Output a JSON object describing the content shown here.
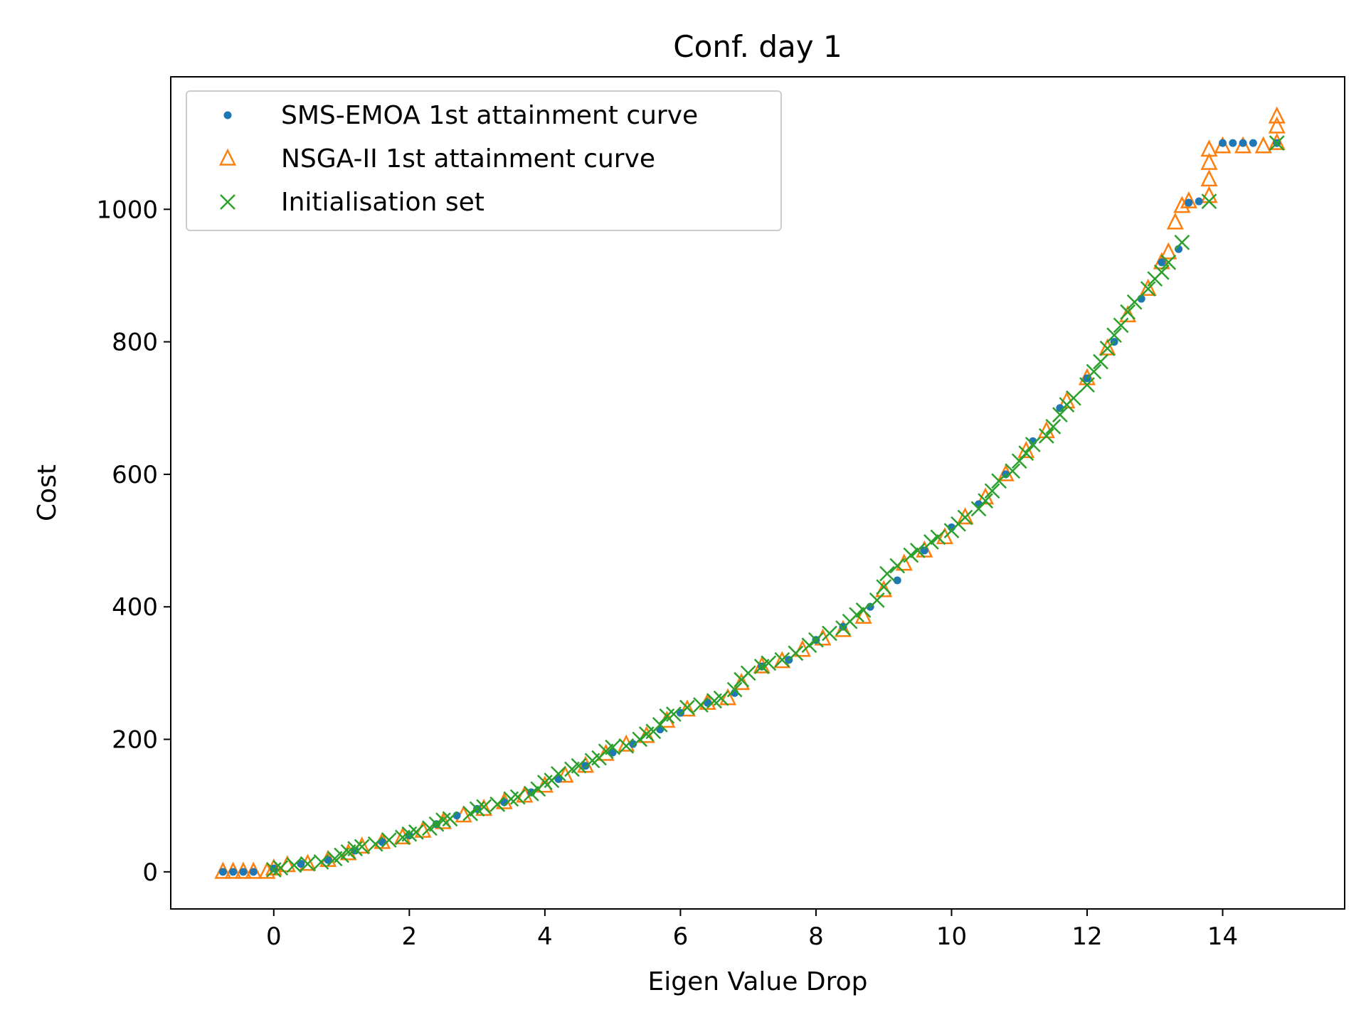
{
  "chart_data": {
    "type": "scatter",
    "title": "Conf. day 1",
    "xlabel": "Eigen Value Drop",
    "ylabel": "Cost",
    "xlim": [
      -1.52,
      15.8
    ],
    "ylim": [
      -56,
      1200
    ],
    "xticks": [
      0,
      2,
      4,
      6,
      8,
      10,
      12,
      14
    ],
    "xtick_labels": [
      "0",
      "2",
      "4",
      "6",
      "8",
      "10",
      "12",
      "14"
    ],
    "yticks": [
      0,
      200,
      400,
      600,
      800,
      1000
    ],
    "ytick_labels": [
      "0",
      "200",
      "400",
      "600",
      "800",
      "1000"
    ],
    "grid": false,
    "legend_position": "top-left",
    "series": [
      {
        "name": "SMS-EMOA 1st attainment curve",
        "marker": "dot",
        "color": "#1f77b4",
        "points": [
          [
            -0.75,
            0
          ],
          [
            -0.6,
            0
          ],
          [
            -0.45,
            0
          ],
          [
            -0.3,
            0
          ],
          [
            0.0,
            5
          ],
          [
            0.4,
            12
          ],
          [
            0.8,
            18
          ],
          [
            1.2,
            32
          ],
          [
            1.6,
            45
          ],
          [
            2.0,
            55
          ],
          [
            2.4,
            72
          ],
          [
            2.7,
            85
          ],
          [
            3.0,
            95
          ],
          [
            3.4,
            105
          ],
          [
            3.8,
            120
          ],
          [
            4.2,
            140
          ],
          [
            4.6,
            160
          ],
          [
            5.0,
            180
          ],
          [
            5.3,
            193
          ],
          [
            5.7,
            215
          ],
          [
            6.0,
            240
          ],
          [
            6.4,
            255
          ],
          [
            6.8,
            270
          ],
          [
            7.2,
            310
          ],
          [
            7.6,
            320
          ],
          [
            8.0,
            350
          ],
          [
            8.4,
            370
          ],
          [
            8.8,
            400
          ],
          [
            9.2,
            440
          ],
          [
            9.6,
            485
          ],
          [
            10.0,
            520
          ],
          [
            10.4,
            555
          ],
          [
            10.8,
            600
          ],
          [
            11.2,
            650
          ],
          [
            11.6,
            700
          ],
          [
            12.0,
            745
          ],
          [
            12.4,
            800
          ],
          [
            12.8,
            865
          ],
          [
            13.1,
            920
          ],
          [
            13.35,
            940
          ],
          [
            13.5,
            1010
          ],
          [
            13.65,
            1012
          ],
          [
            14.0,
            1100
          ],
          [
            14.15,
            1100
          ],
          [
            14.3,
            1100
          ],
          [
            14.45,
            1100
          ],
          [
            14.8,
            1100
          ]
        ]
      },
      {
        "name": "NSGA-II 1st attainment curve",
        "marker": "triangle",
        "color": "#ff7f0e",
        "points": [
          [
            -0.75,
            0
          ],
          [
            -0.6,
            0
          ],
          [
            -0.45,
            0
          ],
          [
            -0.3,
            0
          ],
          [
            -0.1,
            0
          ],
          [
            0.0,
            5
          ],
          [
            0.2,
            10
          ],
          [
            0.5,
            12
          ],
          [
            0.8,
            18
          ],
          [
            1.1,
            28
          ],
          [
            1.3,
            38
          ],
          [
            1.6,
            45
          ],
          [
            1.9,
            52
          ],
          [
            2.2,
            62
          ],
          [
            2.5,
            75
          ],
          [
            2.8,
            85
          ],
          [
            3.1,
            95
          ],
          [
            3.4,
            105
          ],
          [
            3.7,
            115
          ],
          [
            4.0,
            130
          ],
          [
            4.3,
            145
          ],
          [
            4.6,
            160
          ],
          [
            4.9,
            178
          ],
          [
            5.2,
            192
          ],
          [
            5.5,
            205
          ],
          [
            5.8,
            228
          ],
          [
            6.1,
            245
          ],
          [
            6.4,
            255
          ],
          [
            6.7,
            262
          ],
          [
            6.9,
            285
          ],
          [
            7.2,
            310
          ],
          [
            7.5,
            318
          ],
          [
            7.8,
            335
          ],
          [
            8.1,
            352
          ],
          [
            8.4,
            365
          ],
          [
            8.7,
            385
          ],
          [
            9.0,
            425
          ],
          [
            9.3,
            465
          ],
          [
            9.6,
            485
          ],
          [
            9.9,
            505
          ],
          [
            10.2,
            535
          ],
          [
            10.5,
            565
          ],
          [
            10.8,
            600
          ],
          [
            11.1,
            635
          ],
          [
            11.4,
            665
          ],
          [
            11.7,
            710
          ],
          [
            12.0,
            745
          ],
          [
            12.3,
            790
          ],
          [
            12.6,
            840
          ],
          [
            12.9,
            880
          ],
          [
            13.1,
            920
          ],
          [
            13.2,
            935
          ],
          [
            13.3,
            980
          ],
          [
            13.4,
            1005
          ],
          [
            13.5,
            1012
          ],
          [
            13.8,
            1020
          ],
          [
            13.8,
            1045
          ],
          [
            13.8,
            1070
          ],
          [
            13.8,
            1090
          ],
          [
            14.0,
            1095
          ],
          [
            14.3,
            1095
          ],
          [
            14.6,
            1095
          ],
          [
            14.8,
            1100
          ],
          [
            14.8,
            1125
          ],
          [
            14.8,
            1140
          ]
        ]
      },
      {
        "name": "Initialisation set",
        "marker": "x",
        "color": "#2ca02c",
        "points": [
          [
            0.0,
            3
          ],
          [
            0.1,
            6
          ],
          [
            0.3,
            10
          ],
          [
            0.5,
            12
          ],
          [
            0.7,
            15
          ],
          [
            0.9,
            20
          ],
          [
            1.0,
            25
          ],
          [
            1.1,
            30
          ],
          [
            1.2,
            35
          ],
          [
            1.3,
            38
          ],
          [
            1.5,
            42
          ],
          [
            1.7,
            48
          ],
          [
            1.9,
            52
          ],
          [
            2.0,
            57
          ],
          [
            2.1,
            60
          ],
          [
            2.3,
            66
          ],
          [
            2.4,
            72
          ],
          [
            2.5,
            78
          ],
          [
            2.6,
            80
          ],
          [
            2.9,
            88
          ],
          [
            3.0,
            95
          ],
          [
            3.1,
            98
          ],
          [
            3.3,
            102
          ],
          [
            3.5,
            110
          ],
          [
            3.6,
            113
          ],
          [
            3.8,
            118
          ],
          [
            3.9,
            125
          ],
          [
            4.0,
            135
          ],
          [
            4.1,
            138
          ],
          [
            4.2,
            148
          ],
          [
            4.4,
            155
          ],
          [
            4.5,
            160
          ],
          [
            4.7,
            168
          ],
          [
            4.8,
            172
          ],
          [
            4.9,
            182
          ],
          [
            5.0,
            188
          ],
          [
            5.2,
            190
          ],
          [
            5.4,
            200
          ],
          [
            5.5,
            208
          ],
          [
            5.6,
            212
          ],
          [
            5.7,
            222
          ],
          [
            5.8,
            235
          ],
          [
            5.9,
            238
          ],
          [
            6.1,
            248
          ],
          [
            6.3,
            252
          ],
          [
            6.5,
            258
          ],
          [
            6.6,
            262
          ],
          [
            6.8,
            275
          ],
          [
            6.9,
            290
          ],
          [
            7.0,
            300
          ],
          [
            7.2,
            310
          ],
          [
            7.3,
            315
          ],
          [
            7.5,
            320
          ],
          [
            7.7,
            330
          ],
          [
            7.9,
            342
          ],
          [
            8.0,
            350
          ],
          [
            8.2,
            360
          ],
          [
            8.4,
            368
          ],
          [
            8.5,
            378
          ],
          [
            8.6,
            388
          ],
          [
            8.7,
            395
          ],
          [
            8.9,
            410
          ],
          [
            9.0,
            430
          ],
          [
            9.05,
            450
          ],
          [
            9.2,
            462
          ],
          [
            9.4,
            478
          ],
          [
            9.5,
            485
          ],
          [
            9.7,
            498
          ],
          [
            9.8,
            505
          ],
          [
            10.0,
            515
          ],
          [
            10.1,
            525
          ],
          [
            10.2,
            535
          ],
          [
            10.4,
            548
          ],
          [
            10.5,
            560
          ],
          [
            10.6,
            575
          ],
          [
            10.7,
            590
          ],
          [
            10.9,
            605
          ],
          [
            11.0,
            620
          ],
          [
            11.1,
            632
          ],
          [
            11.2,
            645
          ],
          [
            11.4,
            658
          ],
          [
            11.5,
            672
          ],
          [
            11.6,
            690
          ],
          [
            11.7,
            705
          ],
          [
            11.8,
            715
          ],
          [
            12.0,
            735
          ],
          [
            12.1,
            755
          ],
          [
            12.2,
            770
          ],
          [
            12.3,
            790
          ],
          [
            12.4,
            810
          ],
          [
            12.5,
            825
          ],
          [
            12.6,
            845
          ],
          [
            12.7,
            860
          ],
          [
            12.9,
            880
          ],
          [
            13.0,
            895
          ],
          [
            13.1,
            905
          ],
          [
            13.2,
            920
          ],
          [
            13.4,
            950
          ],
          [
            13.8,
            1012
          ],
          [
            14.8,
            1100
          ]
        ]
      }
    ]
  }
}
